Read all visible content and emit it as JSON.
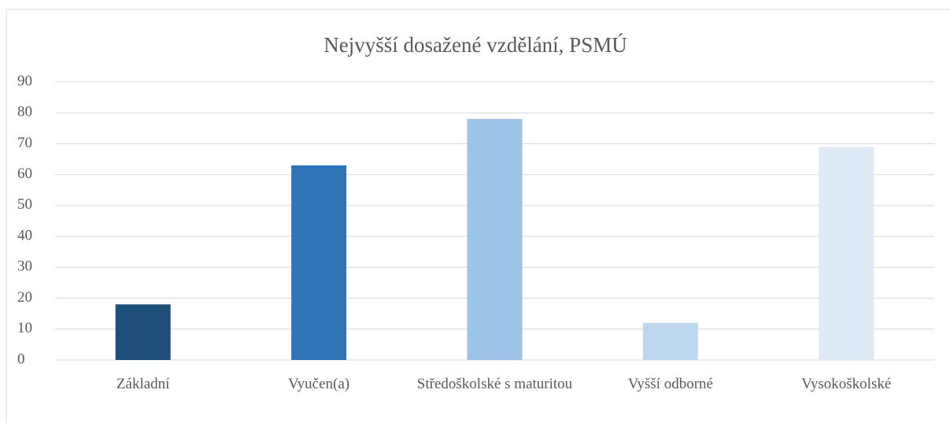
{
  "chart_data": {
    "type": "bar",
    "title": "Nejvyšší dosažené vzdělání, PSMÚ",
    "categories": [
      "Základní",
      "Vyučen(a)",
      "Středoškolské s maturitou",
      "Vyšší odborné",
      "Vysokoškolské"
    ],
    "values": [
      18,
      63,
      78,
      12,
      69
    ],
    "colors": [
      "#1f4e79",
      "#2e75b6",
      "#9dc3e6",
      "#bdd7ee",
      "#deebf7"
    ],
    "ylim": [
      0,
      90
    ],
    "yticks": [
      0,
      10,
      20,
      30,
      40,
      50,
      60,
      70,
      80,
      90
    ],
    "grid": true
  }
}
